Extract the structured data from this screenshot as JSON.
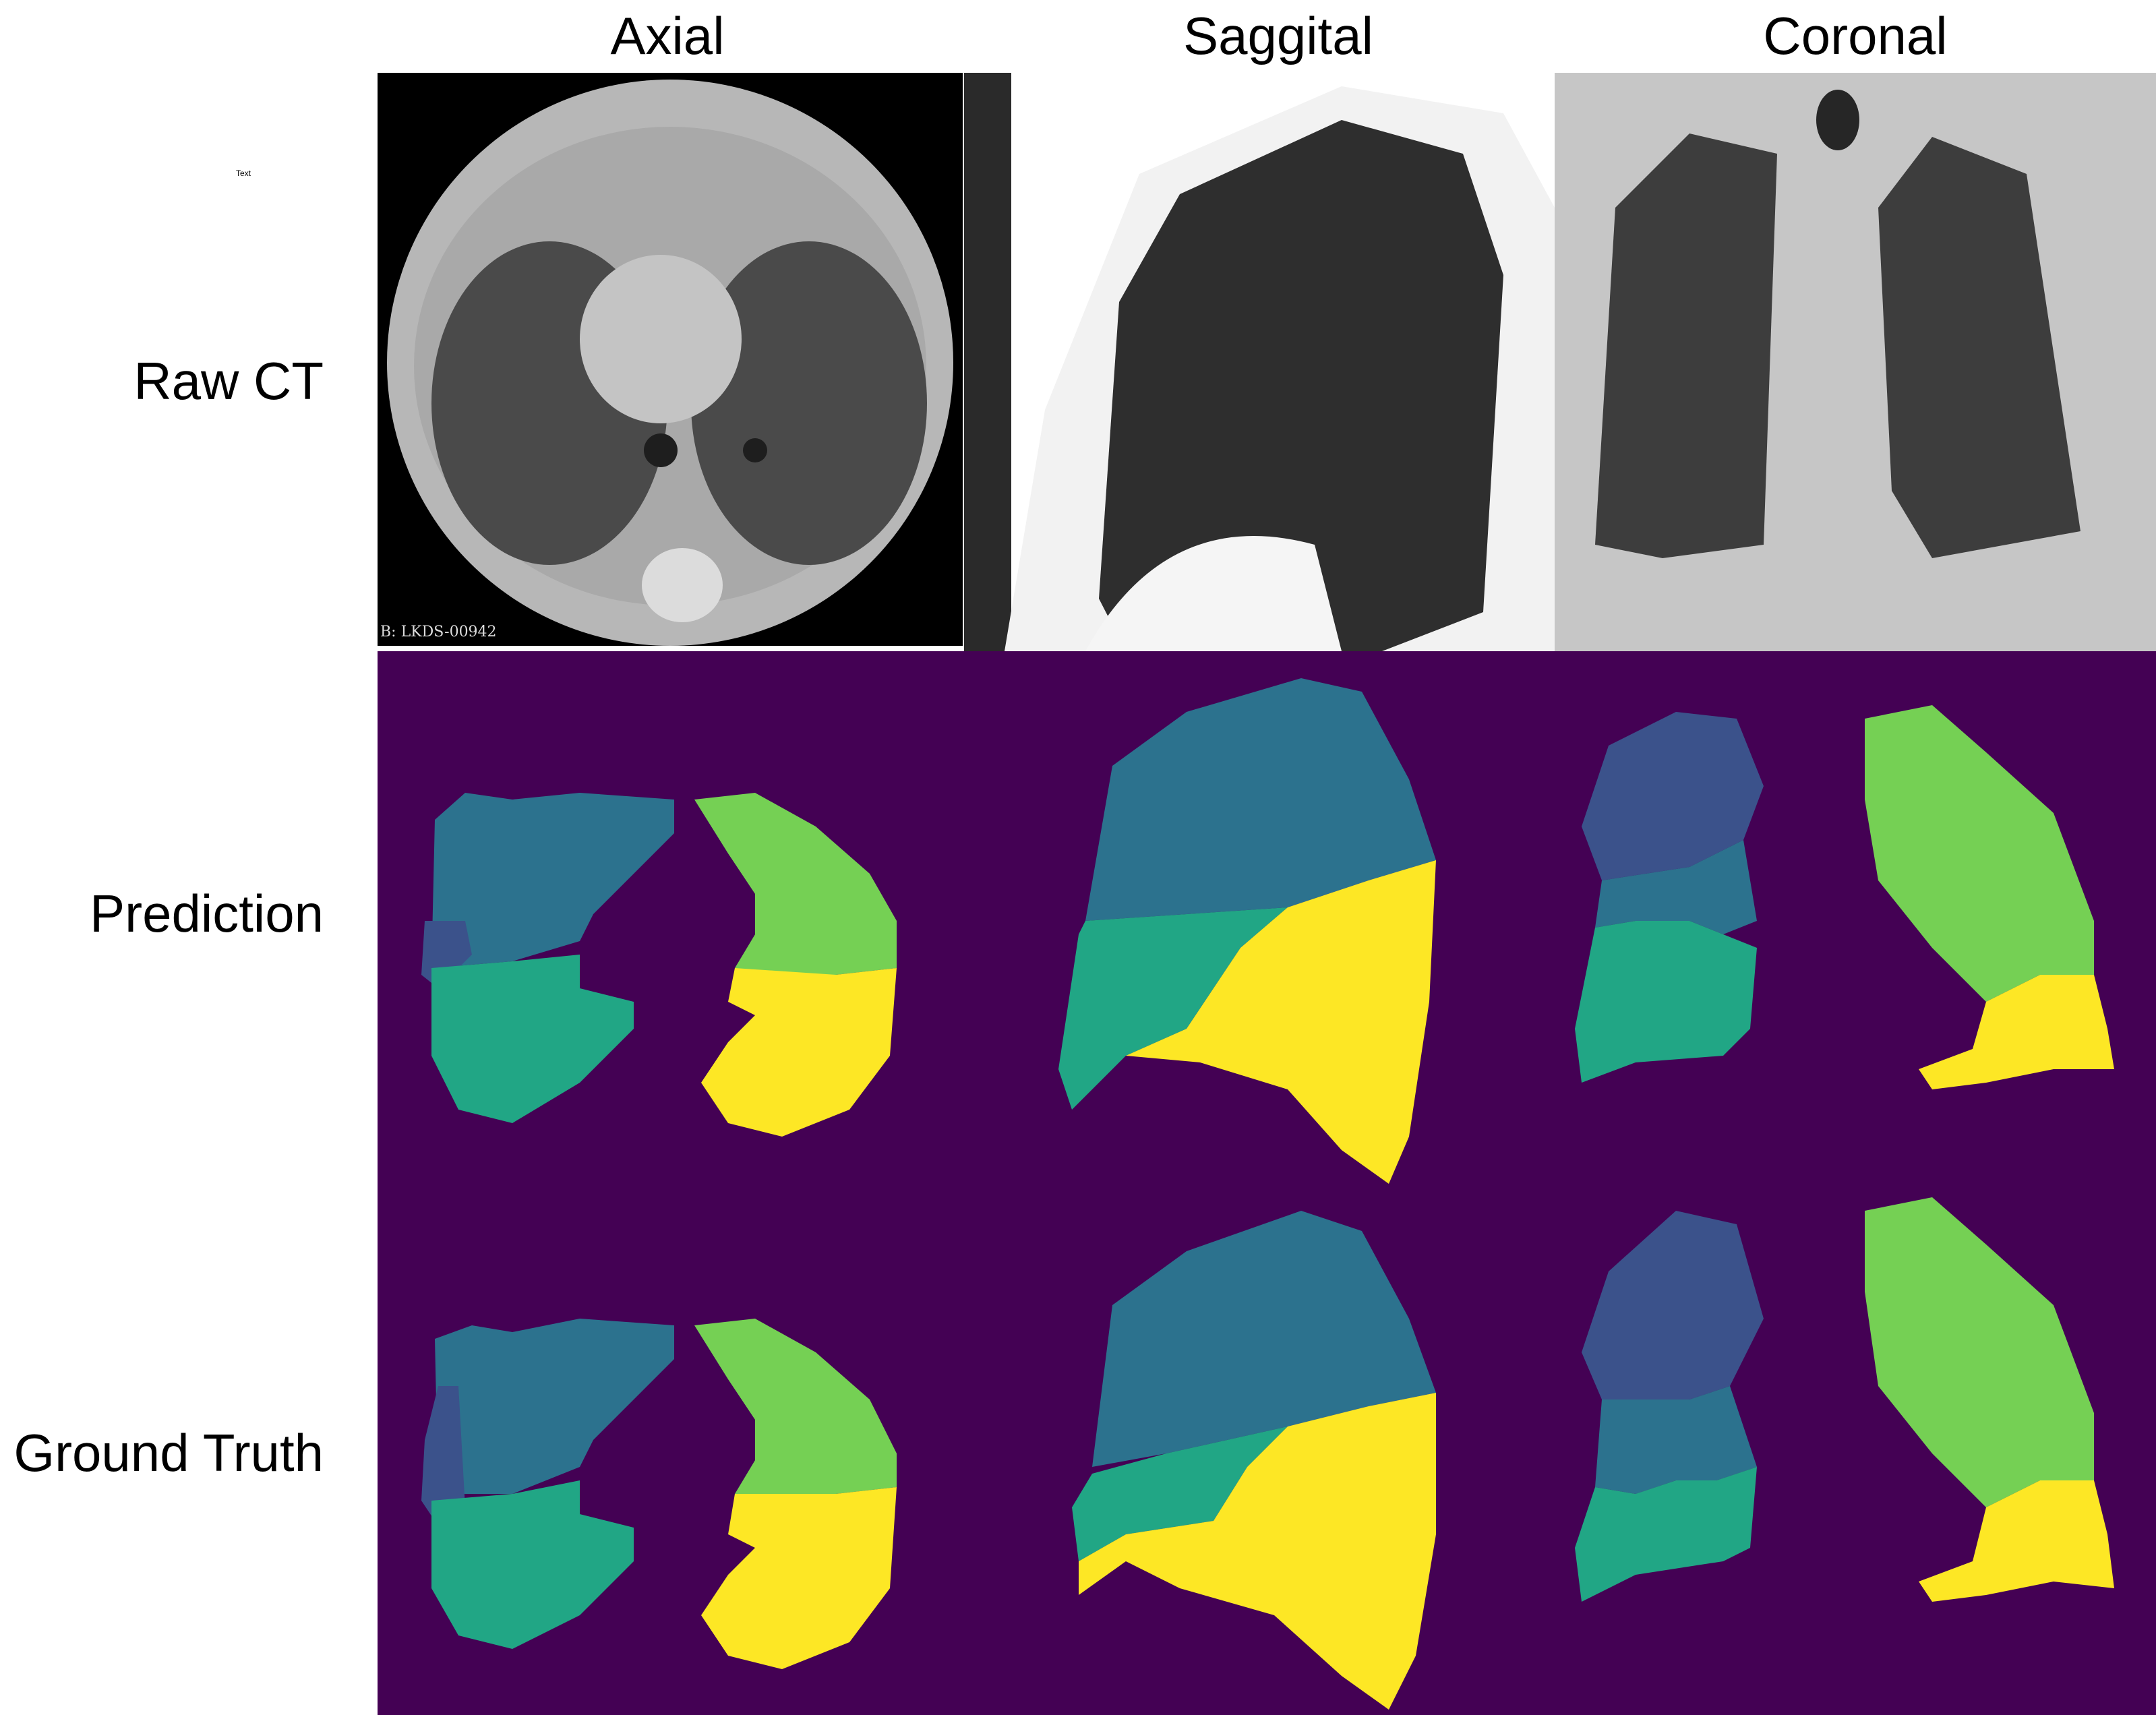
{
  "columns": {
    "axial": "Axial",
    "sagittal": "Saggital",
    "coronal": "Coronal"
  },
  "rows": {
    "raw_ct": "Raw CT",
    "prediction": "Prediction",
    "ground_truth": "Ground Truth"
  },
  "stray_text": "Text",
  "ct_identifier": "B: LKDS-00942",
  "colors": {
    "background": "#440154",
    "lobe_1": "#3b528b",
    "lobe_2": "#2c728e",
    "lobe_3": "#21a685",
    "lobe_4": "#75d054",
    "lobe_5": "#fde725"
  }
}
